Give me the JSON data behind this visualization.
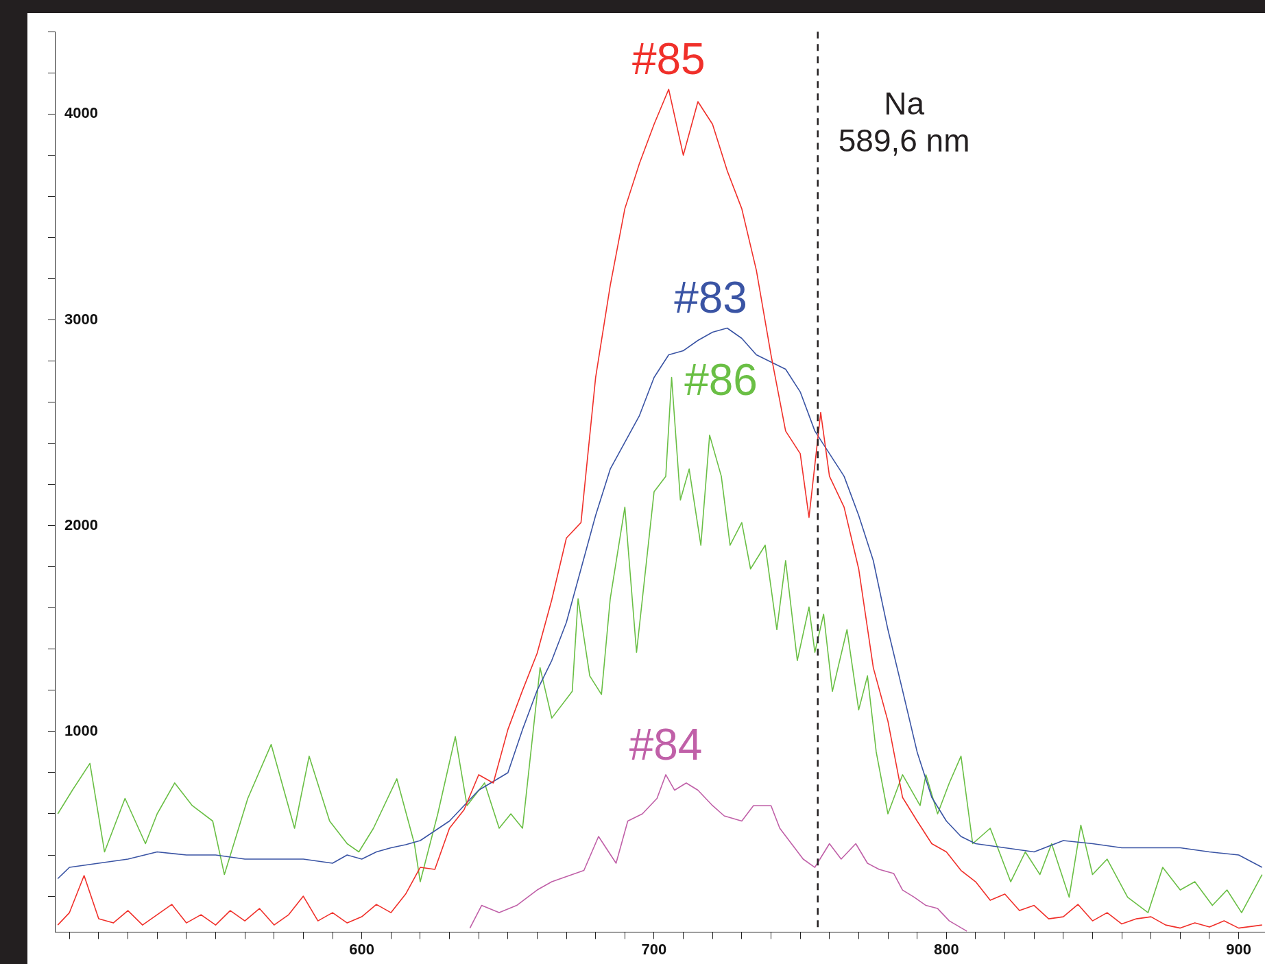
{
  "chart_data": {
    "type": "line",
    "xlim": [
      495,
      909
    ],
    "ylim": [
      25,
      4400
    ],
    "xticks": [
      {
        "value": 500,
        "label": null
      },
      {
        "value": 510,
        "label": null
      },
      {
        "value": 520,
        "label": null
      },
      {
        "value": 530,
        "label": null
      },
      {
        "value": 540,
        "label": null
      },
      {
        "value": 550,
        "label": null
      },
      {
        "value": 560,
        "label": null
      },
      {
        "value": 570,
        "label": null
      },
      {
        "value": 580,
        "label": null
      },
      {
        "value": 590,
        "label": null
      },
      600,
      {
        "value": 610,
        "label": null
      },
      {
        "value": 620,
        "label": null
      },
      {
        "value": 630,
        "label": null
      },
      {
        "value": 640,
        "label": null
      },
      {
        "value": 650,
        "label": null
      },
      {
        "value": 660,
        "label": null
      },
      {
        "value": 670,
        "label": null
      },
      {
        "value": 680,
        "label": null
      },
      {
        "value": 690,
        "label": null
      },
      700,
      {
        "value": 710,
        "label": null
      },
      {
        "value": 720,
        "label": null
      },
      {
        "value": 730,
        "label": null
      },
      {
        "value": 740,
        "label": null
      },
      {
        "value": 750,
        "label": null
      },
      {
        "value": 760,
        "label": null
      },
      {
        "value": 770,
        "label": null
      },
      {
        "value": 780,
        "label": null
      },
      {
        "value": 790,
        "label": null
      },
      800,
      {
        "value": 810,
        "label": null
      },
      {
        "value": 820,
        "label": null
      },
      {
        "value": 830,
        "label": null
      },
      {
        "value": 840,
        "label": null
      },
      {
        "value": 850,
        "label": null
      },
      {
        "value": 860,
        "label": null
      },
      {
        "value": 870,
        "label": null
      },
      {
        "value": 880,
        "label": null
      },
      {
        "value": 890,
        "label": null
      },
      900
    ],
    "yticks": [
      {
        "value": 200,
        "label": null
      },
      {
        "value": 400,
        "label": null
      },
      {
        "value": 600,
        "label": null
      },
      {
        "value": 800,
        "label": null
      },
      1000,
      {
        "value": 1200,
        "label": null
      },
      {
        "value": 1400,
        "label": null
      },
      {
        "value": 1600,
        "label": null
      },
      {
        "value": 1800,
        "label": null
      },
      2000,
      {
        "value": 2200,
        "label": null
      },
      {
        "value": 2400,
        "label": null
      },
      {
        "value": 2600,
        "label": null
      },
      {
        "value": 2800,
        "label": null
      },
      3000,
      {
        "value": 3200,
        "label": null
      },
      {
        "value": 3400,
        "label": null
      },
      {
        "value": 3600,
        "label": null
      },
      {
        "value": 3800,
        "label": null
      },
      4000,
      {
        "value": 4200,
        "label": null
      },
      {
        "value": 4400,
        "label": null
      }
    ],
    "grid": false,
    "legend": false,
    "marker": "none",
    "line_style": "solid",
    "ref_lines": [
      {
        "axis": "x",
        "value": 756,
        "label": "Na\n589,6 nm",
        "color": "#231f20",
        "line_style": "dashed"
      }
    ],
    "series": [
      {
        "name": "#85",
        "color": "#f0302a",
        "x": [
          496,
          500,
          505,
          510,
          515,
          520,
          525,
          530,
          535,
          540,
          545,
          550,
          555,
          560,
          565,
          570,
          575,
          580,
          585,
          590,
          595,
          600,
          605,
          610,
          615,
          620,
          625,
          630,
          635,
          640,
          645,
          650,
          655,
          660,
          665,
          670,
          675,
          680,
          685,
          690,
          695,
          700,
          705,
          710,
          715,
          720,
          725,
          730,
          735,
          740,
          745,
          750,
          753,
          757,
          760,
          765,
          770,
          775,
          780,
          785,
          790,
          795,
          800,
          805,
          810,
          815,
          820,
          825,
          830,
          835,
          840,
          845,
          850,
          855,
          860,
          865,
          870,
          875,
          880,
          885,
          890,
          895,
          900,
          908
        ],
        "values": [
          60,
          120,
          300,
          90,
          70,
          130,
          60,
          110,
          160,
          70,
          110,
          60,
          130,
          80,
          140,
          60,
          110,
          200,
          80,
          120,
          70,
          100,
          160,
          120,
          210,
          340,
          330,
          530,
          620,
          790,
          750,
          1010,
          1200,
          1380,
          1640,
          1940,
          2015,
          2720,
          3167,
          3540,
          3760,
          3950,
          4120,
          3800,
          4060,
          3950,
          3725,
          3540,
          3240,
          2830,
          2460,
          2350,
          2040,
          2550,
          2240,
          2090,
          1790,
          1310,
          1050,
          680,
          565,
          455,
          415,
          325,
          270,
          180,
          210,
          130,
          155,
          90,
          100,
          160,
          80,
          120,
          65,
          90,
          100,
          60,
          45,
          70,
          50,
          80,
          45,
          60
        ]
      },
      {
        "name": "#83",
        "color": "#3a54a4",
        "x": [
          496,
          500,
          510,
          520,
          530,
          540,
          550,
          560,
          570,
          580,
          590,
          595,
          600,
          605,
          610,
          615,
          620,
          630,
          640,
          650,
          655,
          660,
          665,
          670,
          675,
          680,
          685,
          690,
          695,
          700,
          705,
          710,
          715,
          720,
          725,
          730,
          735,
          740,
          745,
          750,
          755,
          760,
          765,
          770,
          775,
          780,
          785,
          790,
          795,
          800,
          805,
          810,
          820,
          830,
          840,
          850,
          860,
          870,
          880,
          890,
          900,
          908
        ],
        "values": [
          285,
          340,
          360,
          380,
          415,
          400,
          400,
          380,
          380,
          380,
          360,
          400,
          380,
          415,
          435,
          450,
          470,
          565,
          715,
          800,
          1010,
          1200,
          1345,
          1530,
          1790,
          2050,
          2275,
          2405,
          2535,
          2720,
          2830,
          2850,
          2900,
          2940,
          2960,
          2910,
          2830,
          2795,
          2760,
          2650,
          2460,
          2350,
          2240,
          2050,
          1830,
          1495,
          1200,
          900,
          680,
          565,
          490,
          455,
          435,
          415,
          470,
          455,
          435,
          435,
          435,
          415,
          400,
          340
        ]
      },
      {
        "name": "#86",
        "color": "#6abf45",
        "x": [
          496,
          501,
          507,
          512,
          519,
          526,
          530,
          536,
          542,
          549,
          553,
          561,
          569,
          577,
          582,
          589,
          595,
          599,
          604,
          612,
          618,
          620,
          626,
          632,
          636,
          642,
          647,
          651,
          655,
          661,
          665,
          672,
          674,
          678,
          682,
          685,
          690,
          694,
          700,
          704,
          706,
          709,
          712,
          716,
          719,
          723,
          726,
          730,
          733,
          738,
          742,
          745,
          749,
          753,
          755,
          758,
          761,
          766,
          770,
          773,
          776,
          780,
          785,
          791,
          793,
          797,
          801,
          805,
          809,
          815,
          822,
          827,
          832,
          836,
          842,
          846,
          850,
          855,
          862,
          869,
          874,
          880,
          885,
          891,
          896,
          901,
          908
        ],
        "values": [
          600,
          715,
          845,
          415,
          675,
          455,
          600,
          750,
          640,
          565,
          305,
          675,
          937,
          530,
          880,
          565,
          455,
          415,
          530,
          770,
          455,
          270,
          600,
          975,
          640,
          750,
          530,
          600,
          530,
          1310,
          1065,
          1195,
          1645,
          1270,
          1180,
          1645,
          2090,
          1385,
          2165,
          2240,
          2720,
          2125,
          2275,
          1905,
          2440,
          2240,
          1905,
          2015,
          1790,
          1905,
          1495,
          1830,
          1345,
          1605,
          1385,
          1570,
          1195,
          1495,
          1105,
          1270,
          900,
          600,
          790,
          640,
          790,
          600,
          750,
          880,
          455,
          530,
          270,
          415,
          305,
          455,
          195,
          545,
          305,
          380,
          195,
          120,
          340,
          230,
          270,
          155,
          230,
          120,
          305
        ]
      },
      {
        "name": "#84",
        "color": "#c060a8",
        "x": [
          637,
          641,
          647,
          653,
          660,
          665,
          672,
          676,
          681,
          687,
          691,
          696,
          701,
          704,
          707,
          711,
          715,
          720,
          724,
          730,
          734,
          740,
          743,
          747,
          751,
          755,
          760,
          764,
          769,
          773,
          777,
          782,
          785,
          789,
          793,
          797,
          801,
          807
        ],
        "values": [
          45,
          155,
          120,
          155,
          230,
          270,
          305,
          325,
          490,
          360,
          565,
          600,
          675,
          790,
          715,
          750,
          715,
          640,
          590,
          565,
          640,
          640,
          530,
          455,
          380,
          340,
          455,
          380,
          455,
          360,
          330,
          310,
          230,
          195,
          155,
          140,
          80,
          30
        ]
      }
    ]
  }
}
